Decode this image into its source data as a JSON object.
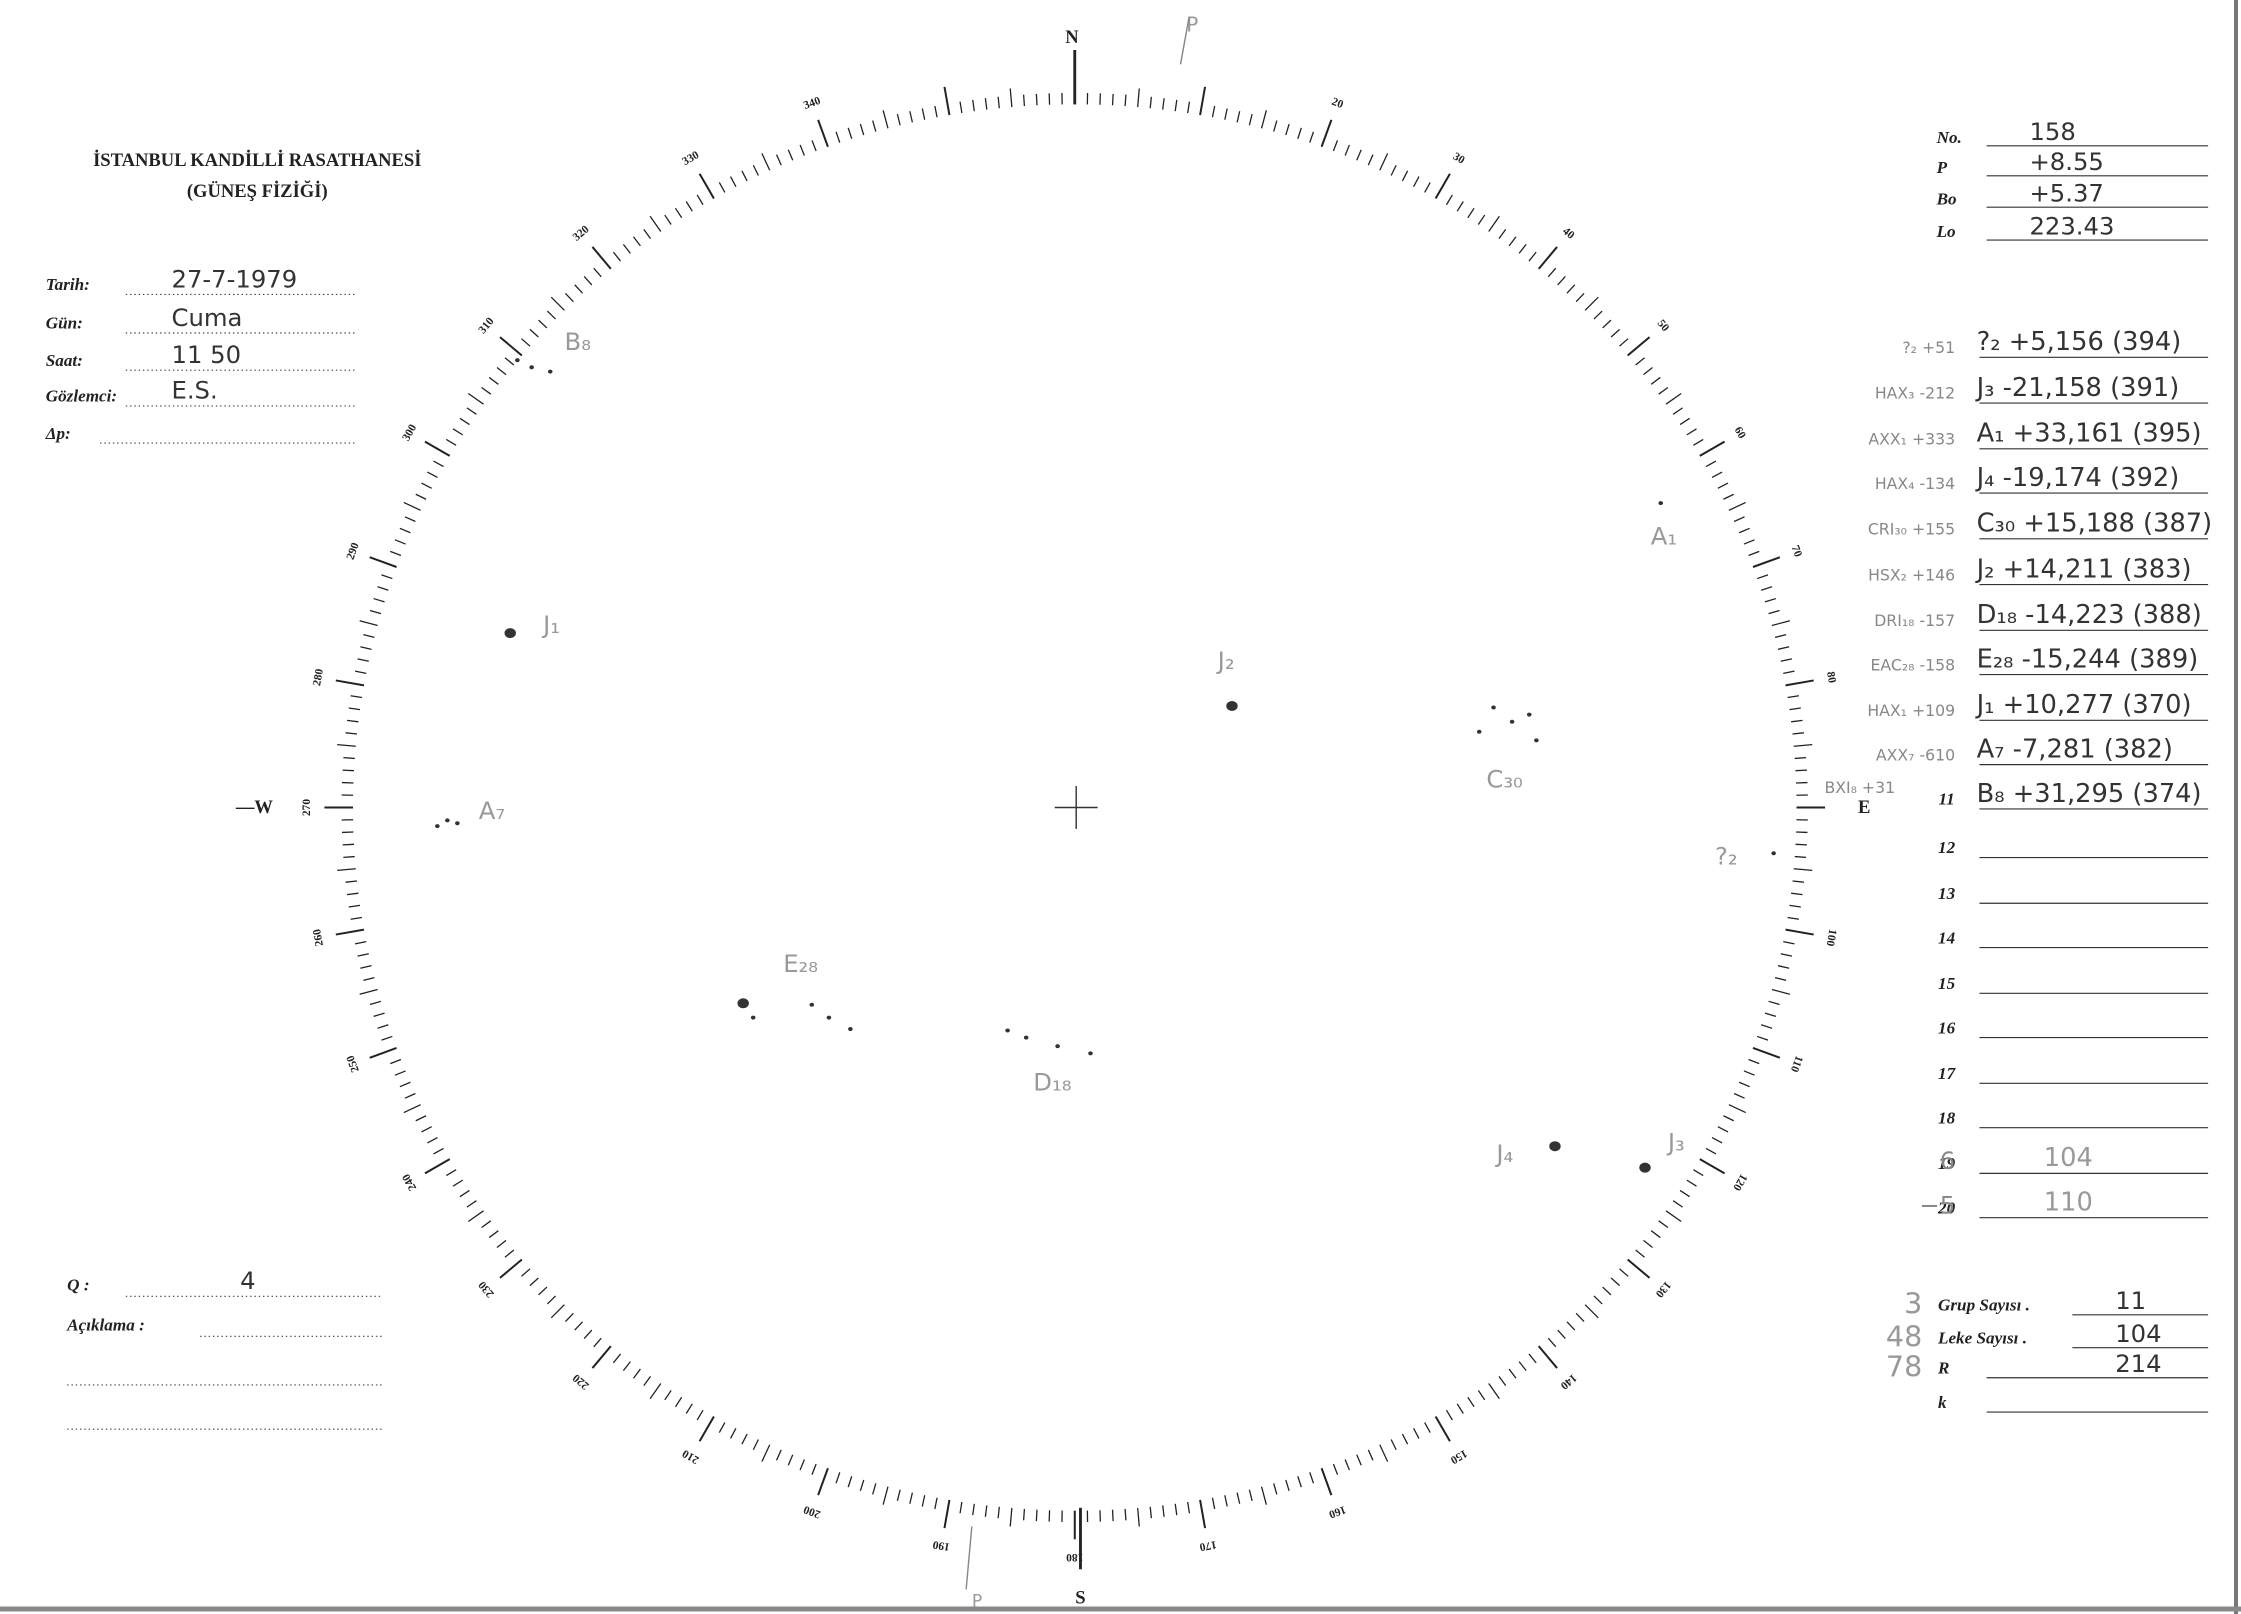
{
  "header": {
    "title": "İSTANBUL KANDİLLİ RASATHANESİ",
    "subtitle": "(GÜNEŞ FİZİĞİ)"
  },
  "fields": [
    {
      "label": "Tarih:",
      "value": "27-7-1979"
    },
    {
      "label": "Gün:",
      "value": "Cuma"
    },
    {
      "label": "Saat:",
      "value": "11 50"
    },
    {
      "label": "Gözlemci:",
      "value": "E.S."
    },
    {
      "label": "Δp:"
    }
  ],
  "params": [
    {
      "label": "No.",
      "value": "158"
    },
    {
      "label": "P",
      "value": "+8.55"
    },
    {
      "label": "Bo",
      "value": "+5.37"
    },
    {
      "label": "Lo",
      "value": "223.43"
    }
  ],
  "table": {
    "rows": [
      {
        "note": "?₂ +51",
        "entry": "?₂ +5,156 (394)"
      },
      {
        "note": "HAX₃ -212",
        "entry": "J₃ -21,158 (391)"
      },
      {
        "note": "AXX₁ +333",
        "entry": "A₁ +33,161 (395)"
      },
      {
        "note": "HAX₄ -134",
        "entry": "J₄ -19,174 (392)"
      },
      {
        "note": "CRI₃₀ +155",
        "entry": "C₃₀ +15,188 (387)"
      },
      {
        "note": "HSX₂ +146",
        "entry": "J₂ +14,211 (383)"
      },
      {
        "note": "DRI₁₈ -157",
        "entry": "D₁₈ -14,223 (388)"
      },
      {
        "note": "EAC₂₈ -158",
        "entry": "E₂₈ -15,244 (389)"
      },
      {
        "note": "HAX₁ +109",
        "entry": "J₁ +10,277 (370)"
      },
      {
        "note": "AXX₇ -610",
        "entry": "A₇ -7,281 (382)"
      },
      {
        "note": "BXI₈ +31",
        "number": "11",
        "entry": "B₈ +31,295 (374)"
      },
      {
        "number": "12"
      },
      {
        "number": "13"
      },
      {
        "number": "14"
      },
      {
        "number": "15"
      },
      {
        "number": "16"
      },
      {
        "number": "17"
      },
      {
        "number": "18"
      },
      {
        "note": "6",
        "number": "19",
        "entry": "104"
      },
      {
        "note": "−5",
        "number": "20",
        "entry": "110"
      }
    ]
  },
  "remarks": {
    "q_label": "Q :",
    "q_value": "4",
    "comment_label": "Açıklama :"
  },
  "summary": [
    {
      "note": "3",
      "label": "Grup Sayısı .",
      "value": "11"
    },
    {
      "note": "48",
      "label": "Leke Sayısı .",
      "value": "104"
    },
    {
      "note": "78",
      "label": "R",
      "value": "214"
    },
    {
      "label": "k"
    }
  ],
  "disk": {
    "cardinal": {
      "north": "N",
      "east": "E",
      "south": "S",
      "west": "—W"
    },
    "pole_marks": [
      "P",
      "P"
    ],
    "dial_labels": [
      "20",
      "30",
      "40",
      "50",
      "60",
      "70",
      "80",
      "100",
      "110",
      "120",
      "130",
      "140",
      "150",
      "160",
      "170",
      "180",
      "190",
      "200",
      "210",
      "220",
      "230",
      "240",
      "250",
      "260",
      "270",
      "280",
      "290",
      "300",
      "310",
      "320",
      "330",
      "340"
    ],
    "groups": [
      {
        "label": "B₈"
      },
      {
        "label": "J₁"
      },
      {
        "label": "A₇"
      },
      {
        "label": "J₂"
      },
      {
        "label": "C₃₀"
      },
      {
        "label": "A₁"
      },
      {
        "label": "?₂"
      },
      {
        "label": "E₂₈"
      },
      {
        "label": "D₁₈"
      },
      {
        "label": "J₄"
      },
      {
        "label": "J₃"
      }
    ]
  }
}
